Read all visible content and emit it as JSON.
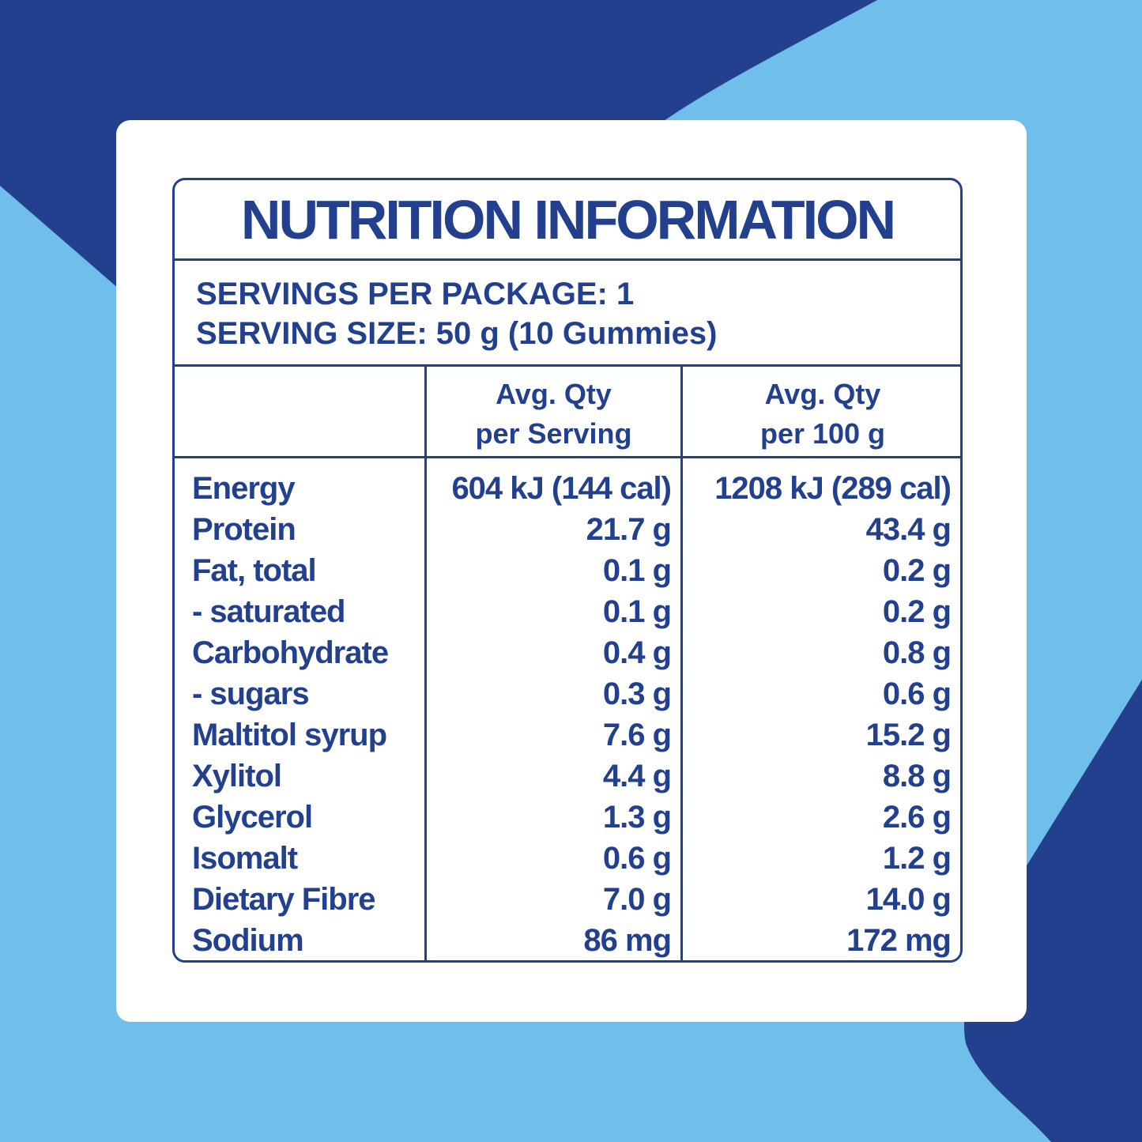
{
  "colors": {
    "light_blue": "#6fbfea",
    "dark_blue": "#22408e",
    "card": "#ffffff"
  },
  "panel": {
    "title": "NUTRITION INFORMATION",
    "servings_per_package": "SERVINGS PER PACKAGE: 1",
    "serving_size": "SERVING SIZE: 50 g (10 Gummies)",
    "columns": {
      "per_serving": [
        "Avg. Qty",
        "per Serving"
      ],
      "per_100g": [
        "Avg. Qty",
        "per 100 g"
      ]
    },
    "rows": [
      {
        "name": "Energy",
        "per_serving": "604 kJ (144 cal)",
        "per_100g": "1208 kJ (289 cal)"
      },
      {
        "name": "Protein",
        "per_serving": "21.7 g",
        "per_100g": "43.4 g"
      },
      {
        "name": "Fat, total",
        "per_serving": "0.1 g",
        "per_100g": "0.2 g"
      },
      {
        "name": "- saturated",
        "per_serving": "0.1 g",
        "per_100g": "0.2 g"
      },
      {
        "name": "Carbohydrate",
        "per_serving": "0.4 g",
        "per_100g": "0.8 g"
      },
      {
        "name": "- sugars",
        "per_serving": "0.3 g",
        "per_100g": "0.6 g"
      },
      {
        "name": "Maltitol syrup",
        "per_serving": "7.6 g",
        "per_100g": "15.2 g"
      },
      {
        "name": "Xylitol",
        "per_serving": "4.4 g",
        "per_100g": "8.8 g"
      },
      {
        "name": "Glycerol",
        "per_serving": "1.3 g",
        "per_100g": "2.6 g"
      },
      {
        "name": "Isomalt",
        "per_serving": "0.6 g",
        "per_100g": "1.2 g"
      },
      {
        "name": "Dietary Fibre",
        "per_serving": "7.0 g",
        "per_100g": "14.0 g"
      },
      {
        "name": "Sodium",
        "per_serving": "86 mg",
        "per_100g": "172 mg"
      }
    ]
  }
}
